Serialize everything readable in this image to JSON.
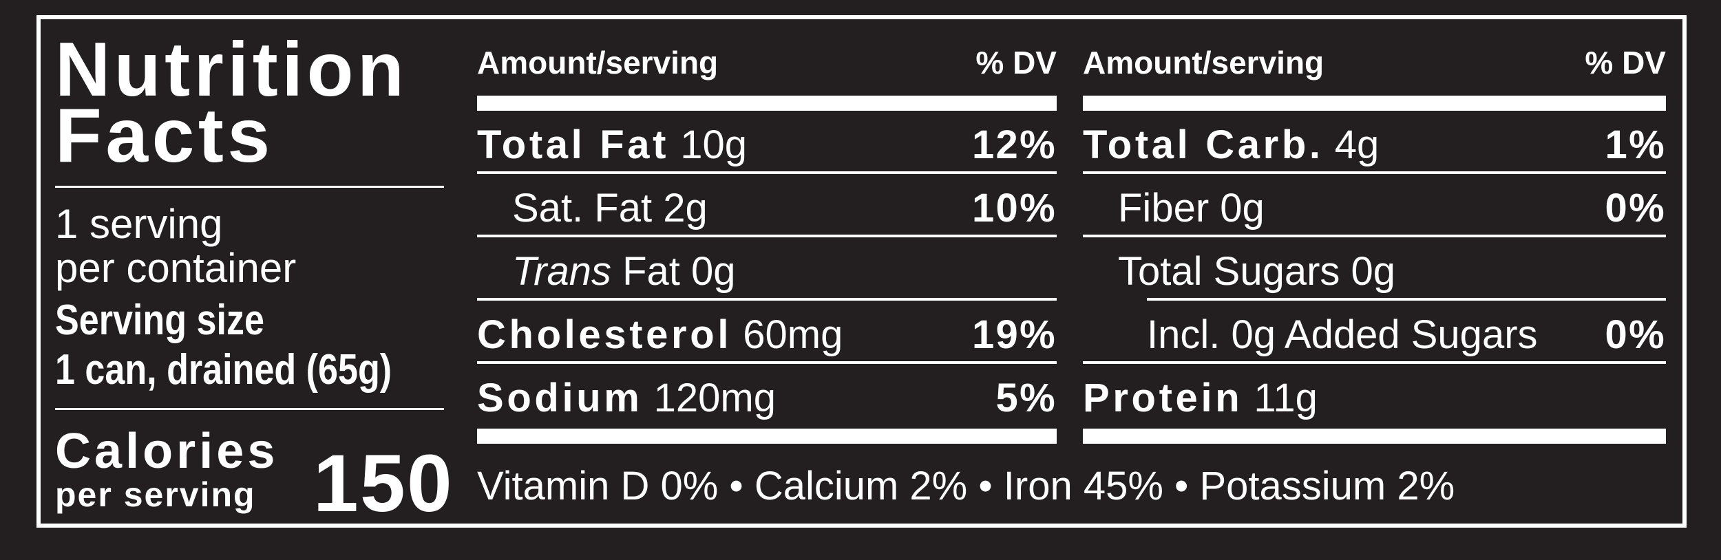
{
  "title": {
    "line1": "Nutrition",
    "line2": "Facts"
  },
  "servings": {
    "line1": "1 serving",
    "line2": "per container"
  },
  "serving_size": {
    "label": "Serving size",
    "value": "1 can, drained (65g)"
  },
  "calories": {
    "label": "Calories",
    "sub": "per serving",
    "value": "150"
  },
  "left_table": {
    "header_amount": "Amount/serving",
    "header_dv": "% DV",
    "rows": [
      {
        "name": "Total Fat",
        "amount": "10g",
        "dv": "12%"
      },
      {
        "name": "Sat. Fat 2g",
        "dv": "10%"
      },
      {
        "italic": "Trans",
        "name": "Fat 0g",
        "dv": ""
      },
      {
        "name": "Cholesterol",
        "amount": "60mg",
        "dv": "19%"
      },
      {
        "name": "Sodium",
        "amount": "120mg",
        "dv": "5%"
      }
    ]
  },
  "right_table": {
    "header_amount": "Amount/serving",
    "header_dv": "% DV",
    "rows": [
      {
        "name": "Total Carb.",
        "amount": "4g",
        "dv": "1%"
      },
      {
        "name": "Fiber 0g",
        "dv": "0%"
      },
      {
        "name": "Total Sugars 0g",
        "dv": ""
      },
      {
        "name": "Incl. 0g Added Sugars",
        "dv": "0%"
      },
      {
        "name": "Protein",
        "amount": "11g",
        "dv": ""
      }
    ]
  },
  "vitamins": "Vitamin D 0% • Calcium 2% • Iron 45% • Potassium 2%",
  "colors": {
    "background": "#231f20",
    "foreground": "#ffffff"
  }
}
